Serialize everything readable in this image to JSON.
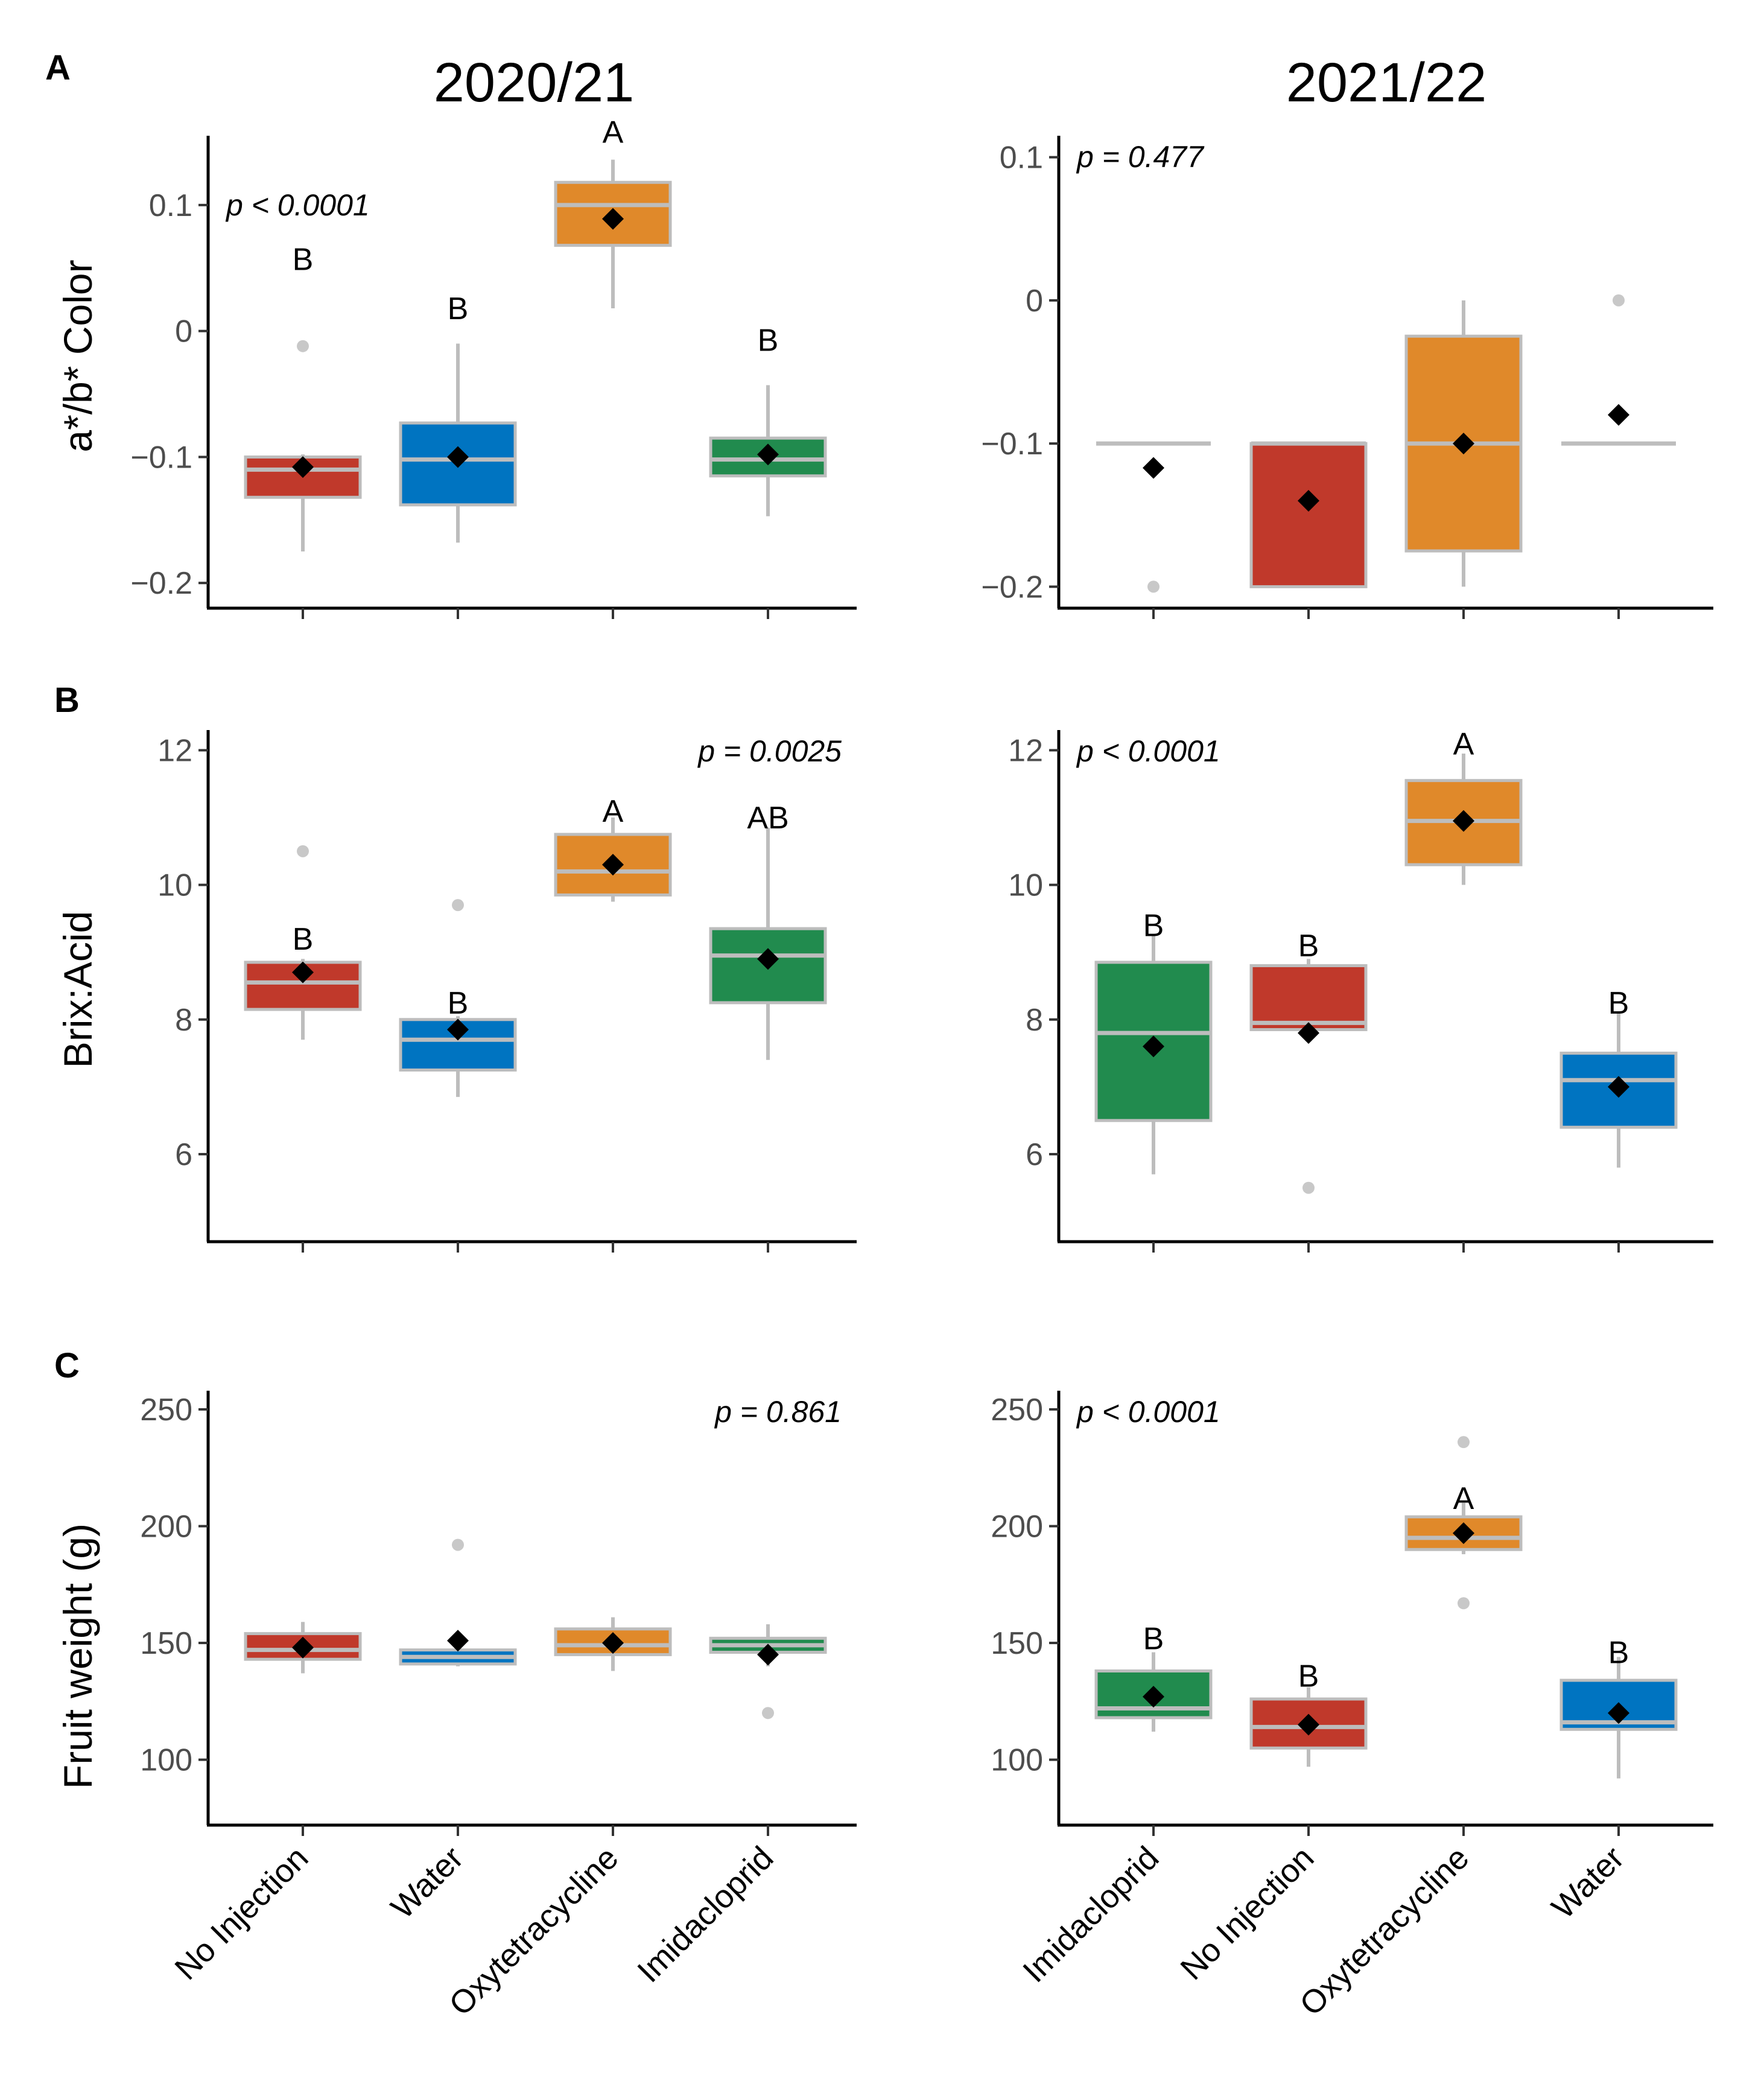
{
  "col_titles": [
    "2020/21",
    "2021/22"
  ],
  "row_letters": [
    "A",
    "B",
    "C"
  ],
  "y_labels": [
    "a*/b* Color",
    "Brix:Acid",
    "Fruit weight (g)"
  ],
  "colors": {
    "No Injection": "#c0392b",
    "Water": "#0074c1",
    "Oxytetracycline": "#e0892a",
    "Imidacloprid": "#218b4e"
  },
  "chart_data": [
    {
      "type": "boxplot",
      "row": 0,
      "col": 0,
      "ylabel": "a*/b* Color",
      "ylim": [
        -0.22,
        0.155
      ],
      "yticks": [
        -0.2,
        -0.1,
        0,
        0.1
      ],
      "ytick_labels": [
        "−0.2",
        "−0.1",
        "0",
        "0.1"
      ],
      "p_text": "p < 0.0001",
      "p_pos": "top-left",
      "categories": [
        "No Injection",
        "Water",
        "Oxytetracycline",
        "Imidacloprid"
      ],
      "boxes": [
        {
          "category": "No Injection",
          "whisker_low": -0.175,
          "q1": -0.132,
          "median": -0.11,
          "q3": -0.1,
          "whisker_high": -0.098,
          "mean": -0.108,
          "outliers": [
            -0.012
          ],
          "letter": "B",
          "letter_y": 0.057
        },
        {
          "category": "Water",
          "whisker_low": -0.168,
          "q1": -0.138,
          "median": -0.102,
          "q3": -0.073,
          "whisker_high": -0.01,
          "mean": -0.1,
          "outliers": [],
          "letter": "B",
          "letter_y": 0.018
        },
        {
          "category": "Oxytetracycline",
          "whisker_low": 0.018,
          "q1": 0.068,
          "median": 0.1,
          "q3": 0.118,
          "whisker_high": 0.136,
          "mean": 0.089,
          "outliers": [],
          "letter": "A",
          "letter_y": 0.158
        },
        {
          "category": "Imidacloprid",
          "whisker_low": -0.147,
          "q1": -0.115,
          "median": -0.102,
          "q3": -0.085,
          "whisker_high": -0.043,
          "mean": -0.098,
          "outliers": [],
          "letter": "B",
          "letter_y": -0.007
        }
      ]
    },
    {
      "type": "boxplot",
      "row": 0,
      "col": 1,
      "ylabel": "",
      "ylim": [
        -0.215,
        0.115
      ],
      "yticks": [
        -0.2,
        -0.1,
        0,
        0.1
      ],
      "ytick_labels": [
        "−0.2",
        "−0.1",
        "0",
        "0.1"
      ],
      "p_text": "p = 0.477",
      "p_pos": "top-left",
      "categories": [
        "Imidacloprid",
        "No Injection",
        "Oxytetracycline",
        "Water"
      ],
      "boxes": [
        {
          "category": "Imidacloprid",
          "whisker_low": -0.1,
          "q1": -0.1,
          "median": -0.1,
          "q3": -0.1,
          "whisker_high": -0.1,
          "mean": -0.117,
          "outliers": [
            -0.2
          ],
          "letter": "",
          "letter_y": 0
        },
        {
          "category": "No Injection",
          "whisker_low": -0.2,
          "q1": -0.2,
          "median": -0.1,
          "q3": -0.1,
          "whisker_high": -0.1,
          "mean": -0.14,
          "outliers": [],
          "letter": "",
          "letter_y": 0
        },
        {
          "category": "Oxytetracycline",
          "whisker_low": -0.2,
          "q1": -0.175,
          "median": -0.1,
          "q3": -0.025,
          "whisker_high": 0.0,
          "mean": -0.1,
          "outliers": [],
          "letter": "",
          "letter_y": 0
        },
        {
          "category": "Water",
          "whisker_low": -0.1,
          "q1": -0.1,
          "median": -0.1,
          "q3": -0.1,
          "whisker_high": -0.1,
          "mean": -0.08,
          "outliers": [
            0.0
          ],
          "letter": "",
          "letter_y": 0
        }
      ]
    },
    {
      "type": "boxplot",
      "row": 1,
      "col": 0,
      "ylabel": "Brix:Acid",
      "ylim": [
        4.7,
        12.3
      ],
      "yticks": [
        6,
        8,
        10,
        12
      ],
      "ytick_labels": [
        "6",
        "8",
        "10",
        "12"
      ],
      "p_text": "p = 0.0025",
      "p_pos": "top-right",
      "categories": [
        "No Injection",
        "Water",
        "Oxytetracycline",
        "Imidacloprid"
      ],
      "boxes": [
        {
          "category": "No Injection",
          "whisker_low": 7.7,
          "q1": 8.15,
          "median": 8.55,
          "q3": 8.85,
          "whisker_high": 8.9,
          "mean": 8.7,
          "outliers": [
            10.5
          ],
          "letter": "B",
          "letter_y": 9.2
        },
        {
          "category": "Water",
          "whisker_low": 6.85,
          "q1": 7.25,
          "median": 7.7,
          "q3": 8.0,
          "whisker_high": 8.05,
          "mean": 7.85,
          "outliers": [
            9.7
          ],
          "letter": "B",
          "letter_y": 8.25
        },
        {
          "category": "Oxytetracycline",
          "whisker_low": 9.75,
          "q1": 9.85,
          "median": 10.2,
          "q3": 10.75,
          "whisker_high": 11.0,
          "mean": 10.3,
          "outliers": [],
          "letter": "A",
          "letter_y": 11.1
        },
        {
          "category": "Imidacloprid",
          "whisker_low": 7.4,
          "q1": 8.25,
          "median": 8.95,
          "q3": 9.35,
          "whisker_high": 10.85,
          "mean": 8.9,
          "outliers": [],
          "letter": "AB",
          "letter_y": 11.0
        }
      ]
    },
    {
      "type": "boxplot",
      "row": 1,
      "col": 1,
      "ylabel": "",
      "ylim": [
        4.7,
        12.3
      ],
      "yticks": [
        6,
        8,
        10,
        12
      ],
      "ytick_labels": [
        "6",
        "8",
        "10",
        "12"
      ],
      "p_text": "p < 0.0001",
      "p_pos": "top-left",
      "categories": [
        "Imidacloprid",
        "No Injection",
        "Oxytetracycline",
        "Water"
      ],
      "boxes": [
        {
          "category": "Imidacloprid",
          "whisker_low": 5.7,
          "q1": 6.5,
          "median": 7.8,
          "q3": 8.85,
          "whisker_high": 9.25,
          "mean": 7.6,
          "outliers": [],
          "letter": "B",
          "letter_y": 9.4
        },
        {
          "category": "No Injection",
          "whisker_low": 7.8,
          "q1": 7.85,
          "median": 7.95,
          "q3": 8.8,
          "whisker_high": 8.9,
          "mean": 7.8,
          "outliers": [
            5.5
          ],
          "letter": "B",
          "letter_y": 9.1
        },
        {
          "category": "Oxytetracycline",
          "whisker_low": 10.0,
          "q1": 10.3,
          "median": 10.95,
          "q3": 11.55,
          "whisker_high": 11.95,
          "mean": 10.95,
          "outliers": [],
          "letter": "A",
          "letter_y": 12.1
        },
        {
          "category": "Water",
          "whisker_low": 5.8,
          "q1": 6.4,
          "median": 7.1,
          "q3": 7.5,
          "whisker_high": 8.1,
          "mean": 7.0,
          "outliers": [],
          "letter": "B",
          "letter_y": 8.25
        }
      ]
    },
    {
      "type": "boxplot",
      "row": 2,
      "col": 0,
      "ylabel": "Fruit weight (g)",
      "ylim": [
        72,
        258
      ],
      "yticks": [
        100,
        150,
        200,
        250
      ],
      "ytick_labels": [
        "100",
        "150",
        "200",
        "250"
      ],
      "p_text": "p = 0.861",
      "p_pos": "top-right",
      "categories": [
        "No Injection",
        "Water",
        "Oxytetracycline",
        "Imidacloprid"
      ],
      "boxes": [
        {
          "category": "No Injection",
          "whisker_low": 137,
          "q1": 143,
          "median": 147,
          "q3": 154,
          "whisker_high": 159,
          "mean": 148,
          "outliers": [],
          "letter": "",
          "letter_y": 0
        },
        {
          "category": "Water",
          "whisker_low": 140,
          "q1": 141,
          "median": 144,
          "q3": 147,
          "whisker_high": 148,
          "mean": 151,
          "outliers": [
            192
          ],
          "letter": "",
          "letter_y": 0
        },
        {
          "category": "Oxytetracycline",
          "whisker_low": 138,
          "q1": 145,
          "median": 149,
          "q3": 156,
          "whisker_high": 161,
          "mean": 150,
          "outliers": [],
          "letter": "",
          "letter_y": 0
        },
        {
          "category": "Imidacloprid",
          "whisker_low": 140,
          "q1": 146,
          "median": 149,
          "q3": 152,
          "whisker_high": 158,
          "mean": 145,
          "outliers": [
            120
          ],
          "letter": "",
          "letter_y": 0
        }
      ]
    },
    {
      "type": "boxplot",
      "row": 2,
      "col": 1,
      "ylabel": "",
      "ylim": [
        72,
        258
      ],
      "yticks": [
        100,
        150,
        200,
        250
      ],
      "ytick_labels": [
        "100",
        "150",
        "200",
        "250"
      ],
      "p_text": "p < 0.0001",
      "p_pos": "top-left",
      "categories": [
        "Imidacloprid",
        "No Injection",
        "Oxytetracycline",
        "Water"
      ],
      "boxes": [
        {
          "category": "Imidacloprid",
          "whisker_low": 112,
          "q1": 118,
          "median": 122,
          "q3": 138,
          "whisker_high": 146,
          "mean": 127,
          "outliers": [],
          "letter": "B",
          "letter_y": 152
        },
        {
          "category": "No Injection",
          "whisker_low": 97,
          "q1": 105,
          "median": 114,
          "q3": 126,
          "whisker_high": 131,
          "mean": 115,
          "outliers": [],
          "letter": "B",
          "letter_y": 136
        },
        {
          "category": "Oxytetracycline",
          "whisker_low": 188,
          "q1": 190,
          "median": 195,
          "q3": 204,
          "whisker_high": 210,
          "mean": 197,
          "outliers": [
            236,
            167
          ],
          "letter": "A",
          "letter_y": 212
        },
        {
          "category": "Water",
          "whisker_low": 92,
          "q1": 113,
          "median": 116,
          "q3": 134,
          "whisker_high": 144,
          "mean": 120,
          "outliers": [],
          "letter": "B",
          "letter_y": 146
        }
      ]
    }
  ]
}
